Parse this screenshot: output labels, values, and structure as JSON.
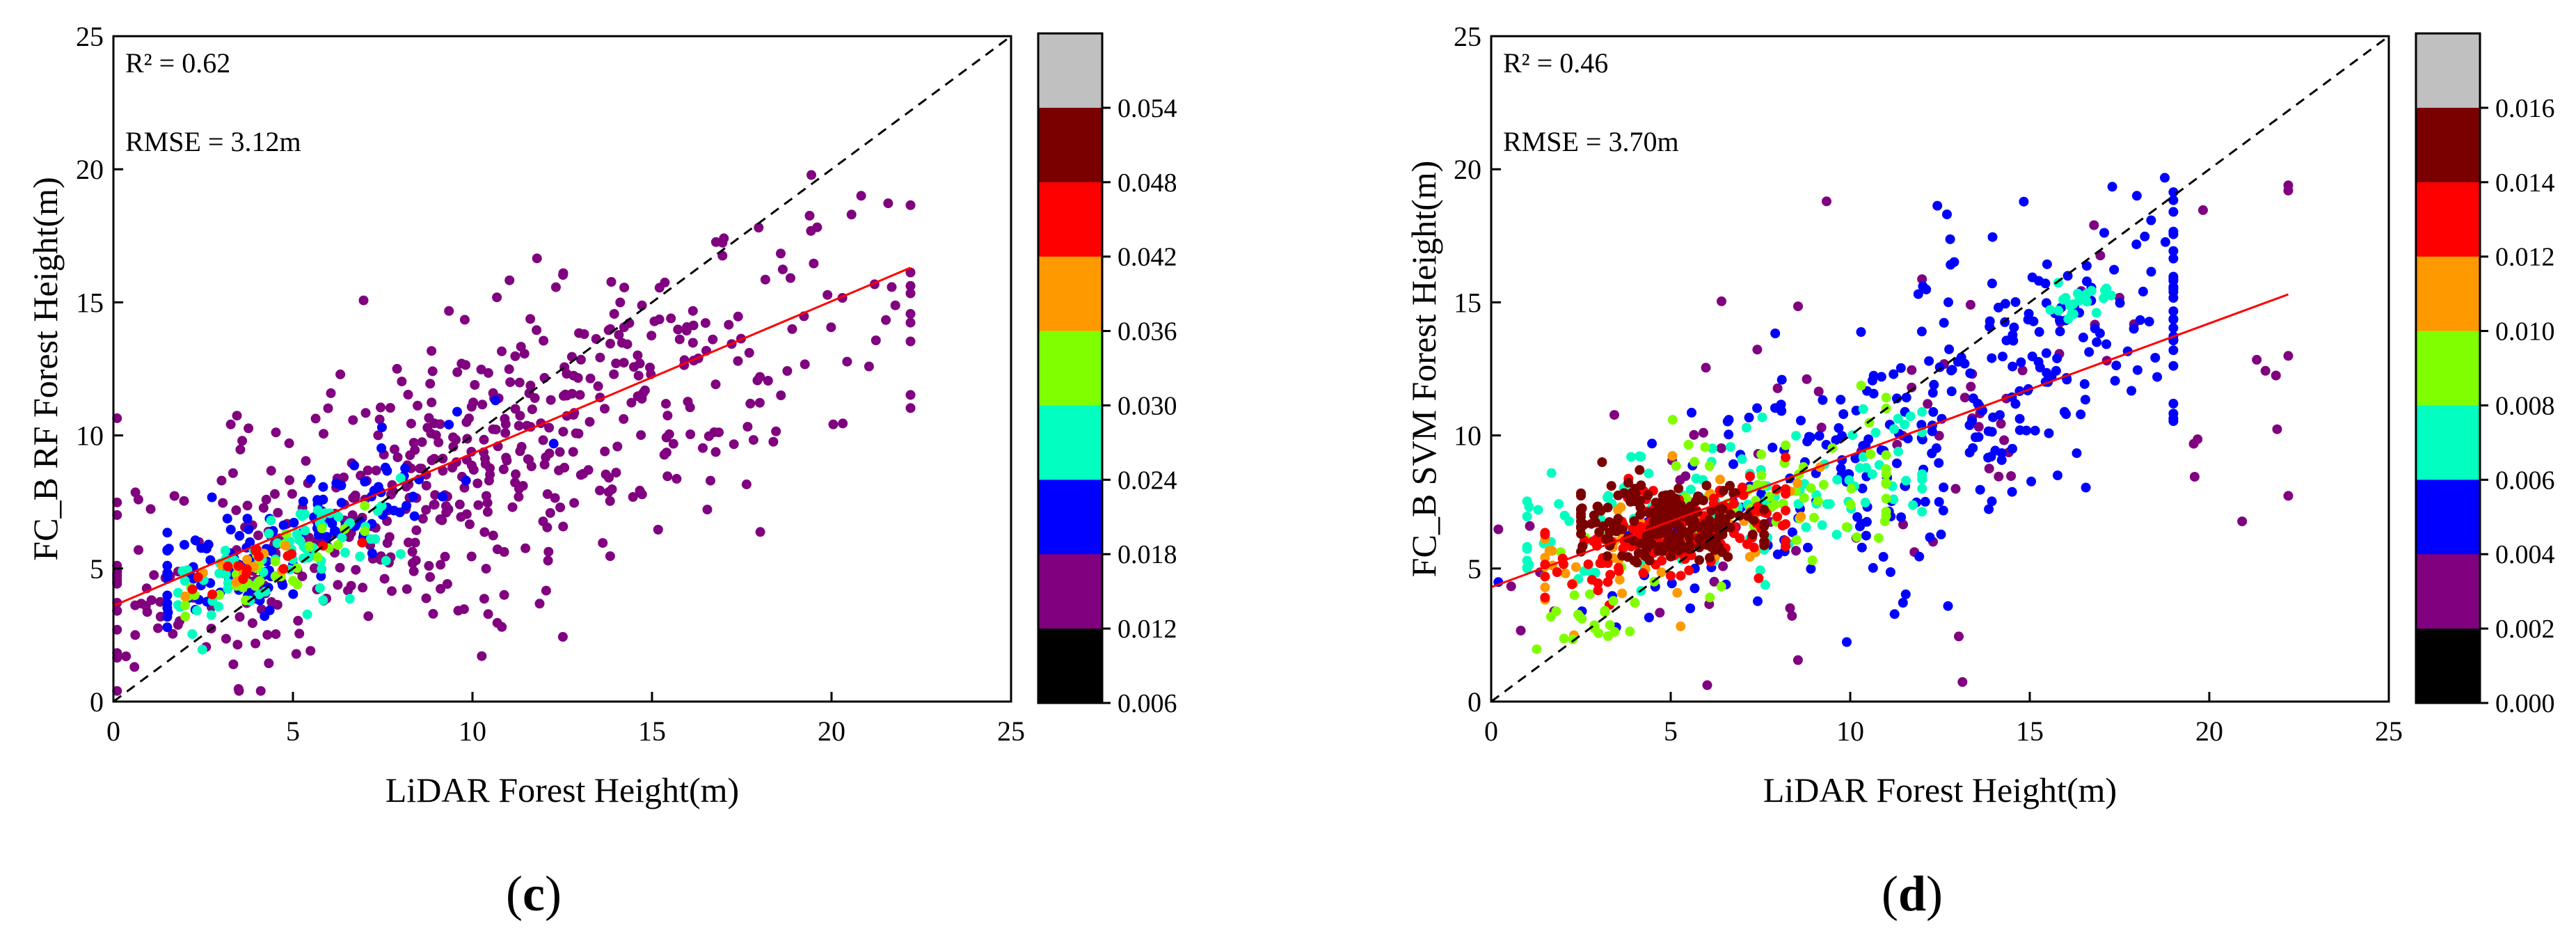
{
  "chart_data": [
    {
      "type": "scatter",
      "panel_label": "(c)",
      "panel_letter": "c",
      "xlabel": "LiDAR Forest Height(m)",
      "ylabel": "FC_B RF Forest Height(m)",
      "xlim": [
        0,
        25
      ],
      "ylim": [
        0,
        25
      ],
      "xticks": [
        "0",
        "5",
        "10",
        "15",
        "20",
        "25"
      ],
      "yticks": [
        "0",
        "5",
        "10",
        "15",
        "20",
        "25"
      ],
      "r2_text": "R² = 0.62",
      "rmse_text": "RMSE = 3.12m",
      "identity_line": [
        [
          0,
          0
        ],
        [
          25,
          25
        ]
      ],
      "fit_line": [
        [
          0,
          3.6
        ],
        [
          22.2,
          16.3
        ]
      ],
      "colorbar": {
        "labels": [
          "0.054",
          "0.048",
          "0.042",
          "0.036",
          "0.030",
          "0.024",
          "0.018",
          "0.012",
          "0.006"
        ],
        "colors": [
          "#c0c0c0",
          "#7a0000",
          "#ff0000",
          "#ff9900",
          "#80ff00",
          "#00ffc0",
          "#0000ff",
          "#800080",
          "#000000"
        ]
      },
      "clusters": [
        {
          "cx": 10,
          "cy": 9,
          "sx": 5.5,
          "sy": 3.4,
          "n": 560,
          "slope": 0.55,
          "intercept": 3.5,
          "spread": 2.6,
          "xmin": 0.1,
          "xmax": 22.2,
          "color": "#800080"
        },
        {
          "cx": 5,
          "cy": 5.8,
          "sx": 2.6,
          "sy": 1.5,
          "n": 130,
          "slope": 0.6,
          "intercept": 3.2,
          "spread": 1.2,
          "xmin": 1.5,
          "xmax": 17,
          "color": "#0000ff"
        },
        {
          "cx": 4.6,
          "cy": 5.4,
          "sx": 1.7,
          "sy": 0.8,
          "n": 80,
          "slope": 0.5,
          "intercept": 3.1,
          "spread": 0.9,
          "xmin": 1.8,
          "xmax": 8,
          "color": "#00ffc0"
        },
        {
          "cx": 4.3,
          "cy": 5.2,
          "sx": 1.4,
          "sy": 0.6,
          "n": 35,
          "slope": 0.5,
          "intercept": 3.0,
          "spread": 0.6,
          "xmin": 2,
          "xmax": 7,
          "color": "#80ff00"
        },
        {
          "cx": 3.5,
          "cy": 4.8,
          "sx": 1.2,
          "sy": 0.5,
          "n": 14,
          "slope": 0.5,
          "intercept": 3.0,
          "spread": 0.5,
          "xmin": 2,
          "xmax": 7,
          "color": "#ff9900"
        },
        {
          "cx": 3.2,
          "cy": 4.9,
          "sx": 1.1,
          "sy": 0.5,
          "n": 16,
          "slope": 0.5,
          "intercept": 3.2,
          "spread": 0.4,
          "xmin": 2.2,
          "xmax": 7,
          "color": "#ff0000"
        }
      ]
    },
    {
      "type": "scatter",
      "panel_label": "(d)",
      "panel_letter": "d",
      "xlabel": "LiDAR Forest Height(m)",
      "ylabel": "FC_B SVM Forest Height(m)",
      "xlim": [
        0,
        25
      ],
      "ylim": [
        0,
        25
      ],
      "xticks": [
        "0",
        "5",
        "10",
        "15",
        "20",
        "25"
      ],
      "yticks": [
        "0",
        "5",
        "10",
        "15",
        "20",
        "25"
      ],
      "r2_text": "R² = 0.46",
      "rmse_text": "RMSE = 3.70m",
      "identity_line": [
        [
          0,
          0
        ],
        [
          25,
          25
        ]
      ],
      "fit_line": [
        [
          0,
          4.3
        ],
        [
          22.2,
          15.3
        ]
      ],
      "colorbar": {
        "labels": [
          "0.016",
          "0.014",
          "0.012",
          "0.010",
          "0.008",
          "0.006",
          "0.004",
          "0.002",
          "0.000"
        ],
        "colors": [
          "#c0c0c0",
          "#7a0000",
          "#ff0000",
          "#ff9900",
          "#80ff00",
          "#00ffc0",
          "#0000ff",
          "#800080",
          "#000000"
        ]
      },
      "clusters": [
        {
          "cx": 11,
          "cy": 10,
          "sx": 6,
          "sy": 4,
          "n": 90,
          "slope": 0.5,
          "intercept": 4.3,
          "spread": 3.8,
          "xmin": 0.2,
          "xmax": 22.2,
          "color": "#800080"
        },
        {
          "cx": 13,
          "cy": 10.5,
          "sx": 4.2,
          "sy": 3.2,
          "n": 320,
          "slope": 0.6,
          "intercept": 3.5,
          "spread": 2.6,
          "xmin": 0.2,
          "xmax": 19,
          "color": "#0000ff"
        },
        {
          "cx": 7,
          "cy": 7.5,
          "sx": 3,
          "sy": 1.4,
          "n": 130,
          "slope": 0.35,
          "intercept": 5.2,
          "spread": 1.4,
          "xmin": 1,
          "xmax": 12,
          "color": "#00ffc0"
        },
        {
          "cx": 7.5,
          "cy": 6.8,
          "sx": 2.6,
          "sy": 1.4,
          "n": 70,
          "slope": 0.3,
          "intercept": 5.0,
          "spread": 1.4,
          "xmin": 1.5,
          "xmax": 11,
          "color": "#80ff00"
        },
        {
          "cx": 4.8,
          "cy": 5.8,
          "sx": 2.3,
          "sy": 1.2,
          "n": 60,
          "slope": 0.3,
          "intercept": 4.6,
          "spread": 1.2,
          "xmin": 1.5,
          "xmax": 9.5,
          "color": "#ff9900"
        },
        {
          "cx": 5,
          "cy": 6.3,
          "sx": 1.9,
          "sy": 1.0,
          "n": 150,
          "slope": 0.2,
          "intercept": 5.4,
          "spread": 1.0,
          "xmin": 1.5,
          "xmax": 8.2,
          "color": "#ff0000"
        },
        {
          "cx": 5,
          "cy": 6.6,
          "sx": 1.4,
          "sy": 0.7,
          "n": 200,
          "slope": 0.0,
          "intercept": 6.6,
          "spread": 0.7,
          "xmin": 2.5,
          "xmax": 7.6,
          "color": "#7a0000"
        },
        {
          "cx": 16.5,
          "cy": 15.2,
          "sx": 0.5,
          "sy": 0.4,
          "n": 22,
          "slope": 0,
          "intercept": 15.2,
          "spread": 0.4,
          "xmin": 15.5,
          "xmax": 17.3,
          "color": "#00ffc0"
        },
        {
          "cx": 2.5,
          "cy": 2.8,
          "sx": 0.8,
          "sy": 0.6,
          "n": 20,
          "slope": 0.3,
          "intercept": 2.0,
          "spread": 0.6,
          "xmin": 1.2,
          "xmax": 4,
          "color": "#80ff00"
        }
      ]
    }
  ]
}
